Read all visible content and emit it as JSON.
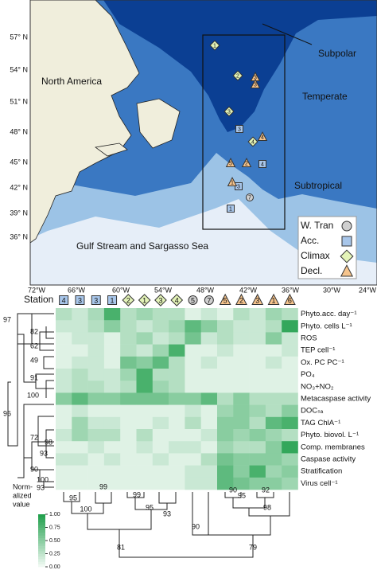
{
  "map": {
    "lat_labels": [
      "57° N",
      "54° N",
      "51° N",
      "48° N",
      "45° N",
      "42° N",
      "39° N",
      "36° N"
    ],
    "lon_labels": [
      "72°W",
      "66°W",
      "60°W",
      "54°W",
      "48°W",
      "42°W",
      "36°W",
      "30°W",
      "24°W"
    ],
    "regions": [
      "North America",
      "Subpolar",
      "Temperate",
      "Subtropical",
      "Gulf Stream and Sargasso Sea"
    ],
    "legend": [
      {
        "name": "W. Tran",
        "shape": "circle",
        "color": "#cfcfcf"
      },
      {
        "name": "Acc.",
        "shape": "square",
        "color": "#a8c6ea"
      },
      {
        "name": "Climax",
        "shape": "diamond",
        "color": "#e4f4b8"
      },
      {
        "name": "Decl.",
        "shape": "triangle",
        "color": "#f6c48c"
      }
    ],
    "stations": [
      {
        "label": "1",
        "stage": 2
      },
      {
        "label": "2",
        "stage": 2
      },
      {
        "label": "3",
        "stage": 3
      },
      {
        "label": "3",
        "stage": 3
      },
      {
        "label": "3",
        "stage": 2
      },
      {
        "label": "4",
        "stage": 3
      },
      {
        "label": "4",
        "stage": 2
      },
      {
        "label": "3",
        "stage": 1
      },
      {
        "label": "5",
        "stage": 3
      },
      {
        "label": "2",
        "stage": 3
      },
      {
        "label": "4",
        "stage": 1
      },
      {
        "label": "3",
        "stage": 1
      },
      {
        "label": "1",
        "stage": 3
      },
      {
        "label": "7",
        "stage": 0
      },
      {
        "label": "1",
        "stage": 1
      }
    ]
  },
  "chart_data": {
    "type": "heatmap",
    "station_title": "Station",
    "columns": [
      {
        "label": "4",
        "stage": 1
      },
      {
        "label": "3",
        "stage": 1
      },
      {
        "label": "3",
        "stage": 1
      },
      {
        "label": "1",
        "stage": 1
      },
      {
        "label": "2",
        "stage": 2
      },
      {
        "label": "1",
        "stage": 2
      },
      {
        "label": "3",
        "stage": 2
      },
      {
        "label": "4",
        "stage": 2
      },
      {
        "label": "5",
        "stage": 0
      },
      {
        "label": "7",
        "stage": 0
      },
      {
        "label": "5",
        "stage": 3
      },
      {
        "label": "2",
        "stage": 3
      },
      {
        "label": "3",
        "stage": 3
      },
      {
        "label": "1",
        "stage": 3
      },
      {
        "label": "6",
        "stage": 3
      }
    ],
    "rows": [
      "Phyto.acc. day⁻¹",
      "Phyto. cells L⁻¹",
      "ROS",
      "TEP cell⁻¹",
      "Ox. PC PC⁻¹",
      "PO₄",
      "NO₃+NO₂",
      "Metacaspase activity",
      "DOCₛₐ",
      "TAG ChlA⁻¹",
      "Phyto. biovol. L⁻¹",
      "Comp. membranes",
      "Caspase activity",
      "Stratification",
      "Virus cell⁻¹"
    ],
    "values": [
      [
        0.3,
        0.2,
        0.35,
        0.8,
        0.3,
        0.4,
        0.3,
        0.3,
        0.1,
        0.2,
        0.1,
        0.3,
        0.2,
        0.4,
        0.3
      ],
      [
        0.2,
        0.2,
        0.3,
        0.5,
        0.3,
        0.2,
        0.3,
        0.4,
        0.7,
        0.5,
        0.3,
        0.2,
        0.2,
        0.3,
        0.9
      ],
      [
        0.1,
        0.2,
        0.2,
        0.1,
        0.3,
        0.4,
        0.2,
        0.3,
        0.6,
        0.2,
        0.3,
        0.2,
        0.2,
        0.5,
        0.2
      ],
      [
        0.1,
        0.1,
        0.2,
        0.1,
        0.3,
        0.2,
        0.4,
        0.8,
        0.1,
        0.1,
        0.2,
        0.1,
        0.1,
        0.1,
        0.2
      ],
      [
        0.1,
        0.2,
        0.2,
        0.1,
        0.6,
        0.5,
        0.7,
        0.3,
        0.1,
        0.2,
        0.1,
        0.1,
        0.1,
        0.2,
        0.1
      ],
      [
        0.2,
        0.3,
        0.2,
        0.2,
        0.4,
        0.8,
        0.3,
        0.3,
        0.1,
        0.1,
        0.1,
        0.1,
        0.1,
        0.1,
        0.1
      ],
      [
        0.2,
        0.3,
        0.3,
        0.2,
        0.3,
        0.8,
        0.4,
        0.3,
        0.1,
        0.1,
        0.1,
        0.1,
        0.1,
        0.1,
        0.1
      ],
      [
        0.5,
        0.7,
        0.5,
        0.5,
        0.6,
        0.6,
        0.6,
        0.5,
        0.5,
        0.7,
        0.3,
        0.5,
        0.3,
        0.3,
        0.3
      ],
      [
        0.1,
        0.2,
        0.1,
        0.1,
        0.1,
        0.1,
        0.1,
        0.1,
        0.2,
        0.1,
        0.4,
        0.5,
        0.4,
        0.3,
        0.5
      ],
      [
        0.1,
        0.4,
        0.2,
        0.2,
        0.1,
        0.1,
        0.2,
        0.1,
        0.3,
        0.1,
        0.5,
        0.5,
        0.3,
        0.7,
        0.8
      ],
      [
        0.2,
        0.4,
        0.3,
        0.3,
        0.1,
        0.3,
        0.1,
        0.1,
        0.1,
        0.2,
        0.5,
        0.4,
        0.5,
        0.4,
        0.3
      ],
      [
        0.1,
        0.1,
        0.2,
        0.1,
        0.1,
        0.2,
        0.1,
        0.2,
        0.2,
        0.1,
        0.4,
        0.3,
        0.3,
        0.5,
        0.9
      ],
      [
        0.2,
        0.2,
        0.1,
        0.2,
        0.1,
        0.1,
        0.2,
        0.1,
        0.1,
        0.3,
        0.6,
        0.5,
        0.5,
        0.5,
        0.4
      ],
      [
        0.1,
        0.1,
        0.1,
        0.1,
        0.1,
        0.1,
        0.1,
        0.1,
        0.2,
        0.2,
        0.7,
        0.5,
        0.8,
        0.4,
        0.5
      ],
      [
        0.1,
        0.1,
        0.1,
        0.1,
        0.1,
        0.1,
        0.1,
        0.1,
        0.2,
        0.2,
        0.7,
        0.6,
        0.5,
        0.5,
        0.4
      ]
    ],
    "color_low": "#f4fbf6",
    "color_high": "#1e9e4a",
    "clim": [
      0,
      1
    ],
    "colorbar_title": [
      "Norm-",
      "alized",
      "value"
    ],
    "cticks": [
      {
        "value": 0,
        "label": "0.00"
      },
      {
        "value": 0.25,
        "label": "0.25"
      },
      {
        "value": 0.5,
        "label": "0.50"
      },
      {
        "value": 0.75,
        "label": "0.75"
      },
      {
        "value": 1,
        "label": "1.00"
      }
    ],
    "row_dendrogram_labels": [
      "97",
      "82",
      "62",
      "49",
      "91",
      "100",
      "96",
      "72",
      "98",
      "93",
      "90",
      "100",
      "93"
    ],
    "column_dendrogram_labels": [
      "95",
      "100",
      "99",
      "99",
      "95",
      "93",
      "81",
      "90",
      "90",
      "95",
      "92",
      "98",
      "79"
    ]
  }
}
